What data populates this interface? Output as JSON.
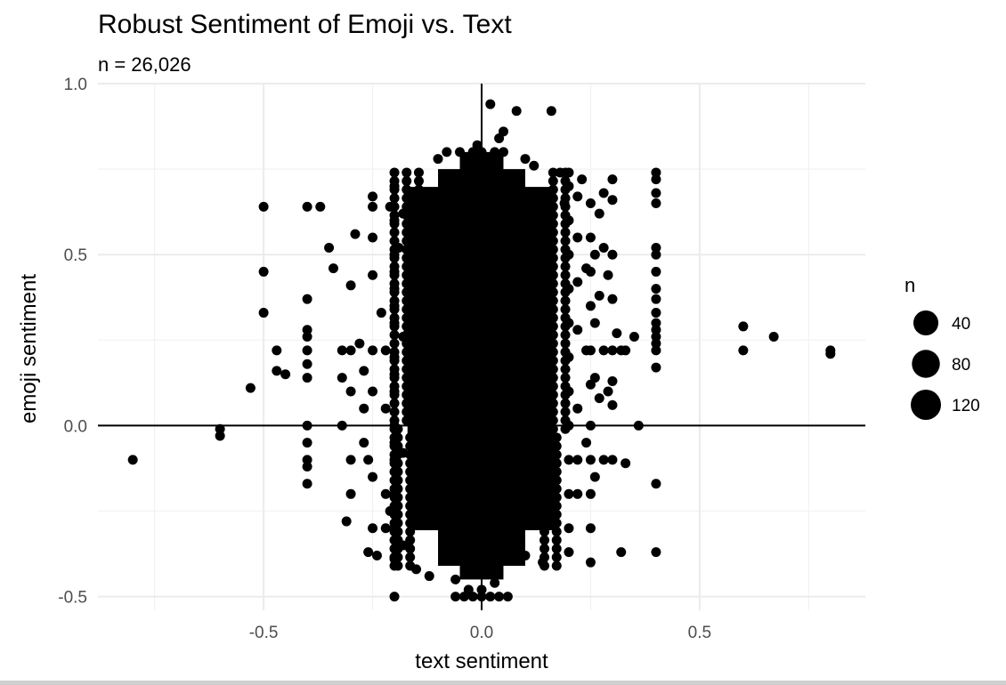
{
  "chart_data": {
    "type": "scatter",
    "title": "Robust Sentiment of Emoji vs. Text",
    "subtitle": "n = 26,026",
    "xlabel": "text sentiment",
    "ylabel": "emoji sentiment",
    "xlim": [
      -0.88,
      0.88
    ],
    "ylim": [
      -0.54,
      1.0
    ],
    "x_ticks": [
      -0.5,
      0.0,
      0.5
    ],
    "x_tick_labels": [
      "-0.5",
      "0.0",
      "0.5"
    ],
    "y_ticks": [
      -0.5,
      0.0,
      0.5,
      1.0
    ],
    "y_tick_labels": [
      "-0.5",
      "0.0",
      "0.5",
      "1.0"
    ],
    "grid": true,
    "reference_lines": {
      "x": 0,
      "y": 0
    },
    "point_color": "#000000",
    "legend": {
      "title": "n",
      "placement": "right",
      "entries": [
        {
          "label": "40",
          "value": 40
        },
        {
          "label": "80",
          "value": 80
        },
        {
          "label": "120",
          "value": 120
        }
      ]
    },
    "dense_band": {
      "x_range": [
        -0.17,
        0.17
      ],
      "y_range": [
        -0.41,
        0.75
      ]
    },
    "points": [
      [
        -0.8,
        -0.1
      ],
      [
        -0.6,
        -0.01
      ],
      [
        -0.6,
        -0.03
      ],
      [
        -0.53,
        0.11
      ],
      [
        -0.5,
        0.33
      ],
      [
        -0.5,
        0.45
      ],
      [
        -0.5,
        0.64
      ],
      [
        -0.47,
        0.22
      ],
      [
        -0.47,
        0.16
      ],
      [
        -0.45,
        0.15
      ],
      [
        -0.4,
        0.64
      ],
      [
        -0.37,
        0.64
      ],
      [
        -0.4,
        0.37
      ],
      [
        -0.4,
        0.28
      ],
      [
        -0.4,
        0.26
      ],
      [
        -0.4,
        0.22
      ],
      [
        -0.4,
        0.18
      ],
      [
        -0.4,
        0.14
      ],
      [
        -0.4,
        0.0
      ],
      [
        -0.4,
        -0.05
      ],
      [
        -0.4,
        -0.1
      ],
      [
        -0.4,
        -0.12
      ],
      [
        -0.4,
        -0.17
      ],
      [
        -0.35,
        0.52
      ],
      [
        -0.34,
        0.46
      ],
      [
        -0.32,
        0.22
      ],
      [
        -0.32,
        0.14
      ],
      [
        -0.32,
        0.0
      ],
      [
        -0.31,
        -0.28
      ],
      [
        -0.3,
        0.41
      ],
      [
        -0.3,
        0.22
      ],
      [
        -0.3,
        0.1
      ],
      [
        -0.3,
        -0.1
      ],
      [
        -0.3,
        -0.2
      ],
      [
        -0.29,
        0.56
      ],
      [
        -0.28,
        0.24
      ],
      [
        -0.27,
        0.16
      ],
      [
        -0.27,
        0.05
      ],
      [
        -0.27,
        -0.05
      ],
      [
        -0.26,
        -0.1
      ],
      [
        -0.26,
        -0.37
      ],
      [
        -0.25,
        0.67
      ],
      [
        -0.25,
        0.64
      ],
      [
        -0.25,
        0.55
      ],
      [
        -0.25,
        0.44
      ],
      [
        -0.25,
        0.22
      ],
      [
        -0.25,
        0.1
      ],
      [
        -0.25,
        -0.15
      ],
      [
        -0.25,
        -0.3
      ],
      [
        -0.24,
        -0.38
      ],
      [
        -0.23,
        0.33
      ],
      [
        -0.22,
        0.22
      ],
      [
        -0.22,
        0.05
      ],
      [
        -0.22,
        -0.2
      ],
      [
        -0.22,
        -0.3
      ],
      [
        -0.21,
        0.64
      ],
      [
        -0.21,
        -0.25
      ],
      [
        -0.2,
        0.7
      ],
      [
        -0.2,
        0.6
      ],
      [
        -0.2,
        0.5
      ],
      [
        -0.2,
        0.4
      ],
      [
        -0.2,
        0.3
      ],
      [
        -0.2,
        0.2
      ],
      [
        -0.2,
        0.1
      ],
      [
        -0.2,
        0.0
      ],
      [
        -0.2,
        -0.1
      ],
      [
        -0.2,
        -0.2
      ],
      [
        -0.2,
        -0.3
      ],
      [
        -0.2,
        -0.39
      ],
      [
        -0.2,
        -0.5
      ],
      [
        -0.19,
        0.52
      ],
      [
        -0.18,
        0.62
      ],
      [
        -0.18,
        0.26
      ],
      [
        -0.18,
        -0.08
      ],
      [
        -0.18,
        -0.35
      ],
      [
        -0.2,
        0.45
      ],
      [
        -0.2,
        0.35
      ],
      [
        -0.2,
        0.15
      ],
      [
        -0.2,
        -0.05
      ],
      [
        -0.2,
        -0.25
      ],
      [
        -0.1,
        0.78
      ],
      [
        -0.08,
        0.8
      ],
      [
        -0.05,
        0.8
      ],
      [
        -0.02,
        0.8
      ],
      [
        0.0,
        0.8
      ],
      [
        0.03,
        0.8
      ],
      [
        0.05,
        0.8
      ],
      [
        -0.01,
        0.82
      ],
      [
        0.04,
        0.84
      ],
      [
        0.05,
        0.86
      ],
      [
        0.02,
        0.94
      ],
      [
        0.08,
        0.92
      ],
      [
        0.16,
        0.92
      ],
      [
        0.1,
        0.78
      ],
      [
        0.12,
        0.76
      ],
      [
        -0.06,
        -0.45
      ],
      [
        -0.03,
        -0.48
      ],
      [
        0.0,
        -0.48
      ],
      [
        0.03,
        -0.46
      ],
      [
        -0.12,
        -0.44
      ],
      [
        -0.06,
        -0.5
      ],
      [
        -0.04,
        -0.5
      ],
      [
        -0.02,
        -0.5
      ],
      [
        0.0,
        -0.5
      ],
      [
        0.02,
        -0.5
      ],
      [
        0.04,
        -0.5
      ],
      [
        0.06,
        -0.5
      ],
      [
        0.1,
        -0.38
      ],
      [
        0.14,
        -0.4
      ],
      [
        -0.15,
        -0.42
      ],
      [
        0.18,
        0.74
      ],
      [
        0.2,
        0.74
      ],
      [
        0.2,
        0.7
      ],
      [
        0.2,
        0.6
      ],
      [
        0.2,
        0.5
      ],
      [
        0.2,
        0.4
      ],
      [
        0.2,
        0.3
      ],
      [
        0.2,
        0.2
      ],
      [
        0.2,
        0.1
      ],
      [
        0.2,
        0.0
      ],
      [
        0.2,
        -0.1
      ],
      [
        0.2,
        -0.2
      ],
      [
        0.2,
        -0.3
      ],
      [
        0.2,
        -0.37
      ],
      [
        0.19,
        0.65
      ],
      [
        0.22,
        0.67
      ],
      [
        0.22,
        0.55
      ],
      [
        0.22,
        0.42
      ],
      [
        0.22,
        0.28
      ],
      [
        0.22,
        0.05
      ],
      [
        0.22,
        -0.1
      ],
      [
        0.22,
        -0.2
      ],
      [
        0.23,
        0.72
      ],
      [
        0.24,
        0.46
      ],
      [
        0.24,
        0.22
      ],
      [
        0.24,
        -0.05
      ],
      [
        0.25,
        0.65
      ],
      [
        0.25,
        0.55
      ],
      [
        0.25,
        0.45
      ],
      [
        0.25,
        0.35
      ],
      [
        0.25,
        0.22
      ],
      [
        0.25,
        0.12
      ],
      [
        0.25,
        0.0
      ],
      [
        0.25,
        -0.1
      ],
      [
        0.25,
        -0.2
      ],
      [
        0.25,
        -0.3
      ],
      [
        0.25,
        -0.4
      ],
      [
        0.26,
        0.5
      ],
      [
        0.26,
        0.3
      ],
      [
        0.26,
        0.14
      ],
      [
        0.26,
        -0.15
      ],
      [
        0.27,
        0.62
      ],
      [
        0.27,
        0.38
      ],
      [
        0.27,
        0.08
      ],
      [
        0.28,
        0.68
      ],
      [
        0.28,
        0.52
      ],
      [
        0.28,
        0.22
      ],
      [
        0.28,
        -0.1
      ],
      [
        0.29,
        0.44
      ],
      [
        0.29,
        0.1
      ],
      [
        0.3,
        0.72
      ],
      [
        0.3,
        0.66
      ],
      [
        0.3,
        0.5
      ],
      [
        0.3,
        0.37
      ],
      [
        0.3,
        0.22
      ],
      [
        0.3,
        0.13
      ],
      [
        0.3,
        0.06
      ],
      [
        0.3,
        -0.1
      ],
      [
        0.31,
        0.27
      ],
      [
        0.32,
        0.22
      ],
      [
        0.32,
        -0.37
      ],
      [
        0.33,
        0.22
      ],
      [
        0.33,
        -0.11
      ],
      [
        0.35,
        0.26
      ],
      [
        0.36,
        0.0
      ],
      [
        0.4,
        0.74
      ],
      [
        0.4,
        0.72
      ],
      [
        0.4,
        0.68
      ],
      [
        0.4,
        0.65
      ],
      [
        0.4,
        0.52
      ],
      [
        0.4,
        0.5
      ],
      [
        0.4,
        0.45
      ],
      [
        0.4,
        0.4
      ],
      [
        0.4,
        0.37
      ],
      [
        0.4,
        0.33
      ],
      [
        0.4,
        0.3
      ],
      [
        0.4,
        0.28
      ],
      [
        0.4,
        0.26
      ],
      [
        0.4,
        0.24
      ],
      [
        0.4,
        0.22
      ],
      [
        0.4,
        0.17
      ],
      [
        0.4,
        -0.17
      ],
      [
        0.4,
        -0.37
      ],
      [
        0.6,
        0.29
      ],
      [
        0.6,
        0.22
      ],
      [
        0.67,
        0.26
      ],
      [
        0.8,
        0.22
      ],
      [
        0.8,
        0.21
      ]
    ]
  }
}
